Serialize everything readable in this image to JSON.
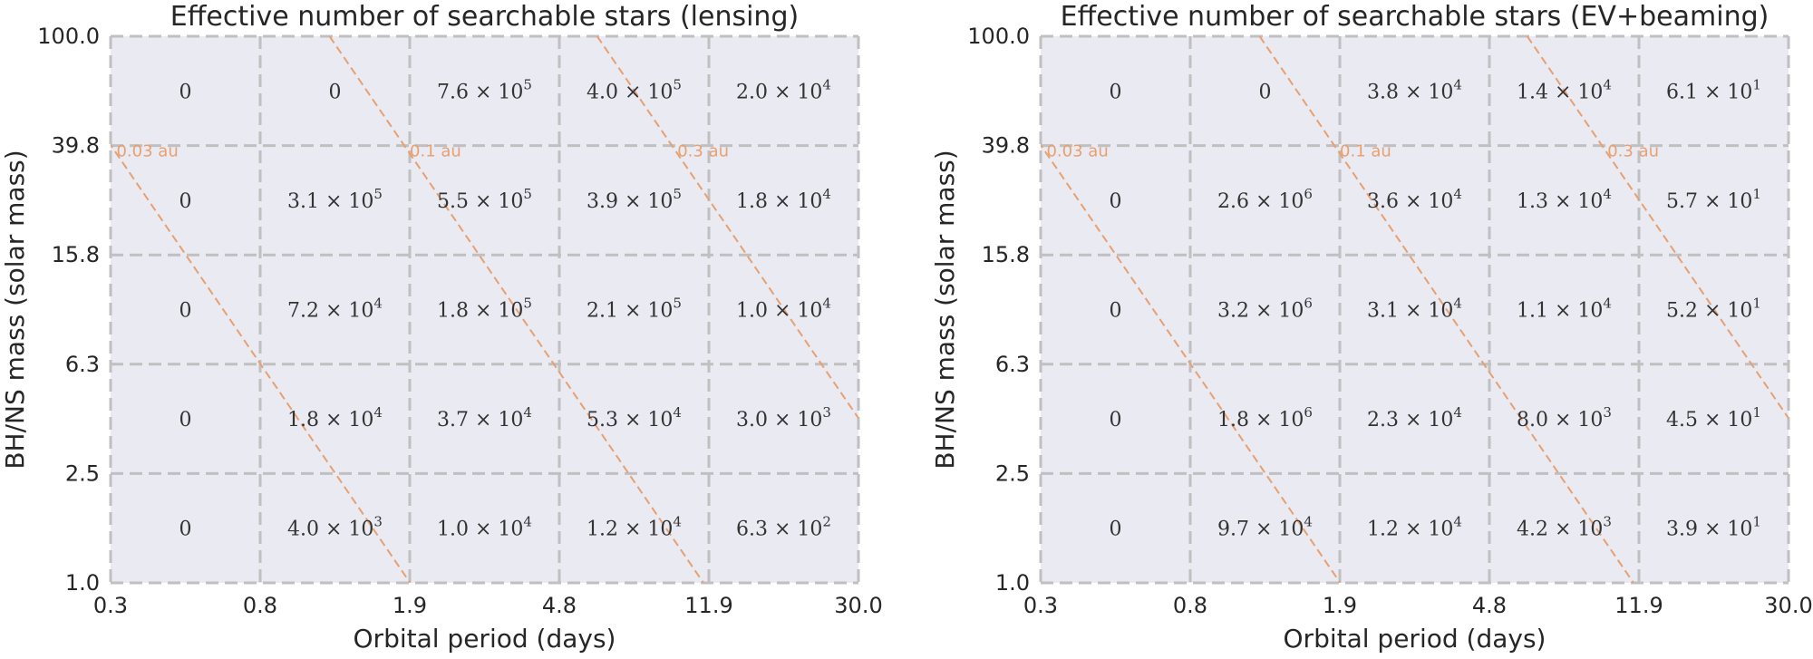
{
  "chart_data": [
    {
      "type": "heatmap",
      "title": "Effective number of searchable stars (lensing)",
      "xlabel": "Orbital period (days)",
      "ylabel": "BH/NS mass (solar mass)",
      "x_scale": "log",
      "y_scale": "log",
      "x_edges": [
        0.3,
        0.8,
        1.9,
        4.8,
        11.9,
        30.0
      ],
      "y_edges": [
        1.0,
        2.5,
        6.3,
        15.8,
        39.8,
        100.0
      ],
      "x_tick_labels": [
        "0.3",
        "0.8",
        "1.9",
        "4.8",
        "11.9",
        "30.0"
      ],
      "y_tick_labels": [
        "1.0",
        "2.5",
        "6.3",
        "15.8",
        "39.8",
        "100.0"
      ],
      "rows_top_to_bottom": [
        [
          "0",
          "0",
          "7.6 × 10^5",
          "4.0 × 10^5",
          "2.0 × 10^4"
        ],
        [
          "0",
          "3.1 × 10^5",
          "5.5 × 10^5",
          "3.9 × 10^5",
          "1.8 × 10^4"
        ],
        [
          "0",
          "7.2 × 10^4",
          "1.8 × 10^5",
          "2.1 × 10^5",
          "1.0 × 10^4"
        ],
        [
          "0",
          "1.8 × 10^4",
          "3.7 × 10^4",
          "5.3 × 10^4",
          "3.0 × 10^3"
        ],
        [
          "0",
          "4.0 × 10^3",
          "1.0 × 10^4",
          "1.2 × 10^4",
          "6.3 × 10^2"
        ]
      ],
      "separation_lines": [
        {
          "label": "0.03 au",
          "a_au": 0.03
        },
        {
          "label": "0.1 au",
          "a_au": 0.1
        },
        {
          "label": "0.3 au",
          "a_au": 0.3
        }
      ],
      "cell_color": "#eaeaf2",
      "grid_color": "#c0c0c0",
      "line_color": "#e8a070",
      "grid": true
    },
    {
      "type": "heatmap",
      "title": "Effective number of searchable stars (EV+beaming)",
      "xlabel": "Orbital period (days)",
      "ylabel": "BH/NS mass (solar mass)",
      "x_scale": "log",
      "y_scale": "log",
      "x_edges": [
        0.3,
        0.8,
        1.9,
        4.8,
        11.9,
        30.0
      ],
      "y_edges": [
        1.0,
        2.5,
        6.3,
        15.8,
        39.8,
        100.0
      ],
      "x_tick_labels": [
        "0.3",
        "0.8",
        "1.9",
        "4.8",
        "11.9",
        "30.0"
      ],
      "y_tick_labels": [
        "1.0",
        "2.5",
        "6.3",
        "15.8",
        "39.8",
        "100.0"
      ],
      "rows_top_to_bottom": [
        [
          "0",
          "0",
          "3.8 × 10^4",
          "1.4 × 10^4",
          "6.1 × 10^1"
        ],
        [
          "0",
          "2.6 × 10^6",
          "3.6 × 10^4",
          "1.3 × 10^4",
          "5.7 × 10^1"
        ],
        [
          "0",
          "3.2 × 10^6",
          "3.1 × 10^4",
          "1.1 × 10^4",
          "5.2 × 10^1"
        ],
        [
          "0",
          "1.8 × 10^6",
          "2.3 × 10^4",
          "8.0 × 10^3",
          "4.5 × 10^1"
        ],
        [
          "0",
          "9.7 × 10^4",
          "1.2 × 10^4",
          "4.2 × 10^3",
          "3.9 × 10^1"
        ]
      ],
      "separation_lines": [
        {
          "label": "0.03 au",
          "a_au": 0.03
        },
        {
          "label": "0.1 au",
          "a_au": 0.1
        },
        {
          "label": "0.3 au",
          "a_au": 0.3
        }
      ],
      "cell_color": "#eaeaf2",
      "grid_color": "#c0c0c0",
      "line_color": "#e8a070",
      "grid": true
    }
  ]
}
